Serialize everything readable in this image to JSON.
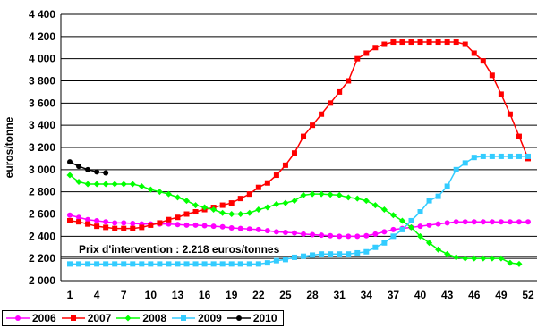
{
  "chart_data": {
    "type": "line",
    "ylabel": "euros/tonne",
    "ylim": [
      2000,
      4400
    ],
    "y_ticks": [
      2000,
      2200,
      2400,
      2600,
      2800,
      3000,
      3200,
      3400,
      3600,
      3800,
      4000,
      4200,
      4400
    ],
    "y_tick_labels": [
      "2 000",
      "2 200",
      "2 400",
      "2 600",
      "2 800",
      "3 000",
      "3 200",
      "3 400",
      "3 600",
      "3 800",
      "4 000",
      "4 200",
      "4 400"
    ],
    "xlim": [
      1,
      52
    ],
    "x_ticks": [
      1,
      4,
      7,
      10,
      13,
      16,
      19,
      22,
      25,
      28,
      31,
      34,
      37,
      40,
      43,
      46,
      49,
      52
    ],
    "grid": "horizontal",
    "legend_position": "bottom",
    "annotation": {
      "text": "Prix d'intervention : 2.218 euros/tonnes",
      "value": 2218
    },
    "series": [
      {
        "name": "2006",
        "color": "#FF00FF",
        "marker": "circle",
        "x": [
          1,
          2,
          3,
          4,
          5,
          6,
          7,
          8,
          9,
          10,
          11,
          12,
          13,
          14,
          15,
          16,
          17,
          18,
          19,
          20,
          21,
          22,
          23,
          24,
          25,
          26,
          27,
          28,
          29,
          30,
          31,
          32,
          33,
          34,
          35,
          36,
          37,
          38,
          39,
          40,
          41,
          42,
          43,
          44,
          45,
          46,
          47,
          48,
          49,
          50,
          51,
          52
        ],
        "values": [
          2590,
          2570,
          2550,
          2540,
          2530,
          2520,
          2520,
          2515,
          2510,
          2510,
          2510,
          2510,
          2505,
          2500,
          2500,
          2495,
          2490,
          2485,
          2475,
          2470,
          2465,
          2460,
          2450,
          2440,
          2435,
          2430,
          2420,
          2415,
          2410,
          2405,
          2400,
          2400,
          2400,
          2405,
          2420,
          2440,
          2460,
          2470,
          2480,
          2490,
          2500,
          2510,
          2520,
          2530,
          2530,
          2530,
          2530,
          2530,
          2530,
          2530,
          2530,
          2530
        ]
      },
      {
        "name": "2007",
        "color": "#FF0000",
        "marker": "square",
        "x": [
          1,
          2,
          3,
          4,
          5,
          6,
          7,
          8,
          9,
          10,
          11,
          12,
          13,
          14,
          15,
          16,
          17,
          18,
          19,
          20,
          21,
          22,
          23,
          24,
          25,
          26,
          27,
          28,
          29,
          30,
          31,
          32,
          33,
          34,
          35,
          36,
          37,
          38,
          39,
          40,
          41,
          42,
          43,
          44,
          45,
          46,
          47,
          48,
          49,
          50,
          51,
          52
        ],
        "values": [
          2540,
          2530,
          2510,
          2490,
          2480,
          2470,
          2470,
          2470,
          2480,
          2500,
          2520,
          2550,
          2570,
          2600,
          2620,
          2640,
          2660,
          2680,
          2700,
          2740,
          2780,
          2840,
          2880,
          2950,
          3040,
          3150,
          3300,
          3400,
          3500,
          3600,
          3700,
          3800,
          4000,
          4050,
          4100,
          4130,
          4150,
          4150,
          4150,
          4150,
          4150,
          4150,
          4150,
          4150,
          4130,
          4050,
          3980,
          3850,
          3680,
          3500,
          3300,
          3100
        ]
      },
      {
        "name": "2008",
        "color": "#00FF00",
        "marker": "diamond",
        "x": [
          1,
          2,
          3,
          4,
          5,
          6,
          7,
          8,
          9,
          10,
          11,
          12,
          13,
          14,
          15,
          16,
          17,
          18,
          19,
          20,
          21,
          22,
          23,
          24,
          25,
          26,
          27,
          28,
          29,
          30,
          31,
          32,
          33,
          34,
          35,
          36,
          37,
          38,
          39,
          40,
          41,
          42,
          43,
          44,
          45,
          46,
          47,
          48,
          49,
          50,
          51
        ],
        "values": [
          2950,
          2890,
          2870,
          2870,
          2870,
          2870,
          2870,
          2870,
          2850,
          2820,
          2800,
          2780,
          2750,
          2720,
          2680,
          2660,
          2640,
          2610,
          2600,
          2600,
          2610,
          2640,
          2660,
          2690,
          2700,
          2720,
          2770,
          2780,
          2780,
          2775,
          2770,
          2750,
          2740,
          2720,
          2680,
          2640,
          2590,
          2540,
          2480,
          2400,
          2340,
          2280,
          2240,
          2210,
          2200,
          2200,
          2200,
          2200,
          2200,
          2160,
          2150
        ]
      },
      {
        "name": "2009",
        "color": "#33CCFF",
        "marker": "square",
        "x": [
          1,
          2,
          3,
          4,
          5,
          6,
          7,
          8,
          9,
          10,
          11,
          12,
          13,
          14,
          15,
          16,
          17,
          18,
          19,
          20,
          21,
          22,
          23,
          24,
          25,
          26,
          27,
          28,
          29,
          30,
          31,
          32,
          33,
          34,
          35,
          36,
          37,
          38,
          39,
          40,
          41,
          42,
          43,
          44,
          45,
          46,
          47,
          48,
          49,
          50,
          51,
          52
        ],
        "values": [
          2150,
          2150,
          2150,
          2150,
          2150,
          2150,
          2150,
          2150,
          2150,
          2150,
          2150,
          2150,
          2150,
          2150,
          2150,
          2150,
          2150,
          2150,
          2150,
          2150,
          2150,
          2150,
          2160,
          2180,
          2190,
          2210,
          2220,
          2230,
          2240,
          2240,
          2240,
          2240,
          2250,
          2260,
          2300,
          2340,
          2400,
          2460,
          2540,
          2620,
          2720,
          2760,
          2850,
          3000,
          3060,
          3110,
          3120,
          3120,
          3120,
          3120,
          3120,
          3120
        ]
      },
      {
        "name": "2010",
        "color": "#000000",
        "marker": "circle",
        "x": [
          1,
          2,
          3,
          4,
          5
        ],
        "values": [
          3070,
          3030,
          3000,
          2980,
          2970
        ]
      }
    ]
  }
}
